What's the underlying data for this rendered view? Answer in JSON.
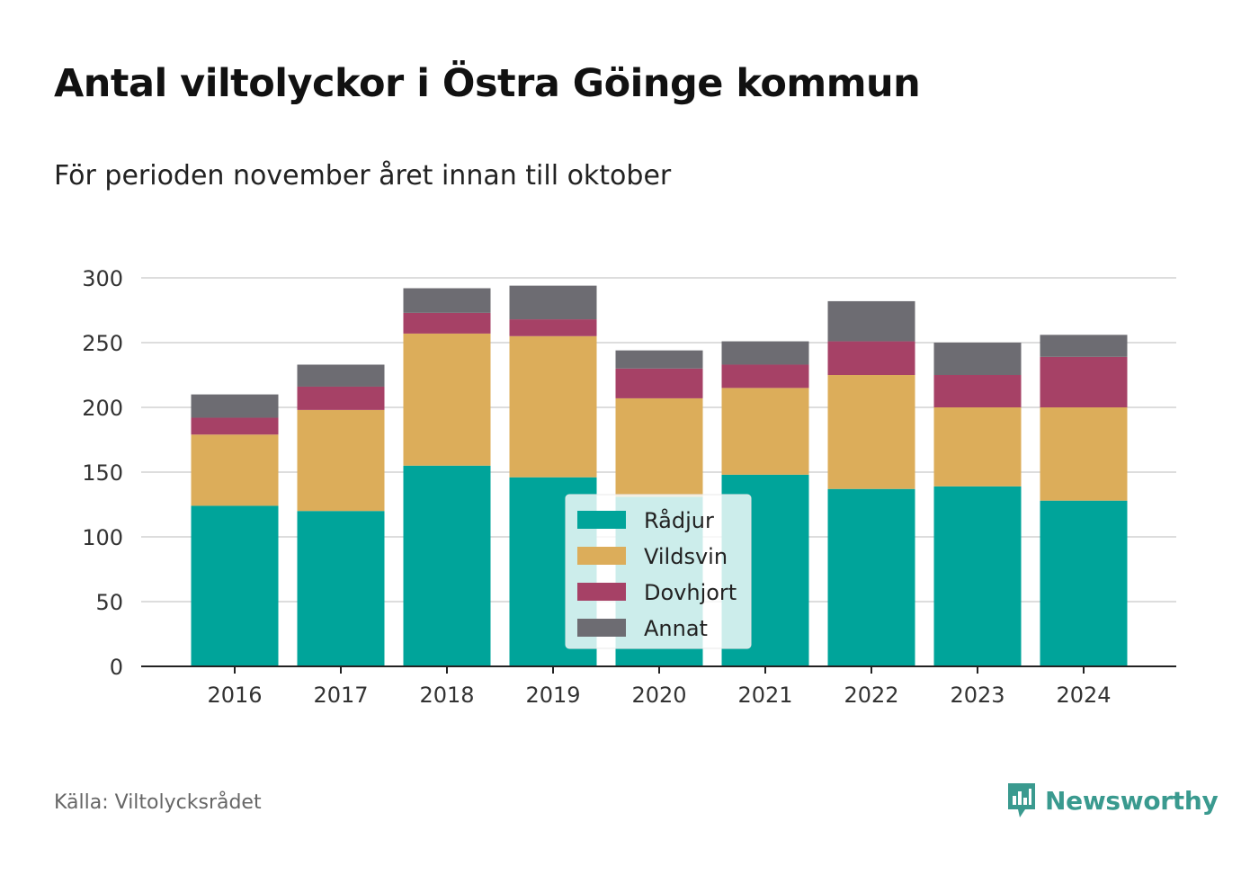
{
  "title": "Antal viltolyckor i Östra Göinge kommun",
  "subtitle": "För perioden november året innan till oktober",
  "source": "Källa: Viltolycksrådet",
  "brand": "Newsworthy",
  "colors": {
    "Rådjur": "#00a49a",
    "Vildsvin": "#dcad5a",
    "Dovhjort": "#a64166",
    "Annat": "#6d6c72",
    "grid": "#dddddd",
    "axis": "#222222",
    "brand": "#3a9a8f"
  },
  "chart_data": {
    "type": "bar",
    "stacked": true,
    "categories": [
      "2016",
      "2017",
      "2018",
      "2019",
      "2020",
      "2021",
      "2022",
      "2023",
      "2024"
    ],
    "series": [
      {
        "name": "Rådjur",
        "values": [
          124,
          120,
          155,
          146,
          131,
          148,
          137,
          139,
          128
        ]
      },
      {
        "name": "Vildsvin",
        "values": [
          55,
          78,
          102,
          109,
          76,
          67,
          88,
          61,
          72
        ]
      },
      {
        "name": "Dovhjort",
        "values": [
          13,
          18,
          16,
          13,
          23,
          18,
          26,
          25,
          39
        ]
      },
      {
        "name": "Annat",
        "values": [
          18,
          17,
          19,
          26,
          14,
          18,
          31,
          25,
          17
        ]
      }
    ],
    "ylim": [
      0,
      300
    ],
    "yticks": [
      0,
      50,
      100,
      150,
      200,
      250,
      300
    ],
    "xlabel": "",
    "ylabel": "",
    "grid": true,
    "legend_position": "center-bottom"
  }
}
